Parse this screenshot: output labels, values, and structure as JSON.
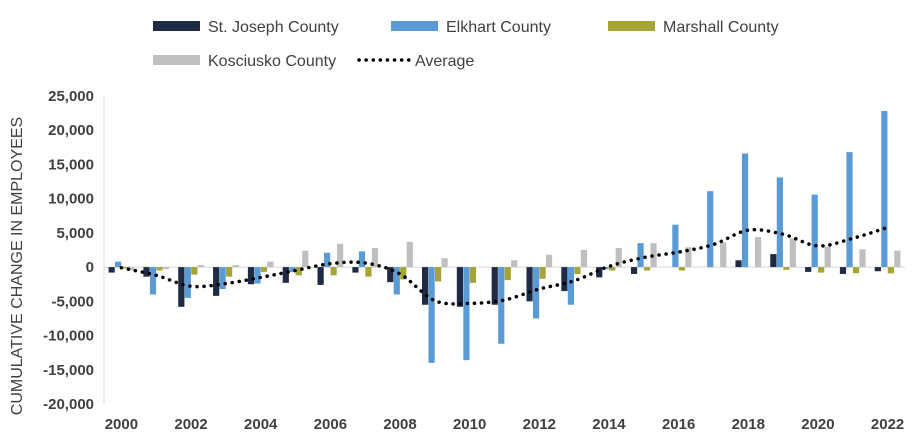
{
  "chart_data": {
    "type": "bar",
    "title": "",
    "xlabel": "",
    "ylabel": "CUMULATIVE CHANGE IN EMPLOYEES",
    "ylim": [
      -20000,
      25000
    ],
    "yticks": [
      25000,
      20000,
      15000,
      10000,
      5000,
      0,
      -5000,
      -10000,
      -15000,
      -20000
    ],
    "ytick_labels": [
      "25,000",
      "20,000",
      "15,000",
      "10,000",
      "5,000",
      "0",
      "-5,000",
      "-10,000",
      "-15,000",
      "-20,000"
    ],
    "grid": false,
    "legend_position": "top",
    "categories": [
      "2000",
      "2001",
      "2002",
      "2003",
      "2004",
      "2005",
      "2006",
      "2007",
      "2008",
      "2009",
      "2010",
      "2011",
      "2012",
      "2013",
      "2014",
      "2015",
      "2016",
      "2017",
      "2018",
      "2019",
      "2020",
      "2021",
      "2022"
    ],
    "xtick_labels": [
      "2000",
      "2002",
      "2004",
      "2006",
      "2008",
      "2010",
      "2012",
      "2014",
      "2016",
      "2018",
      "2020",
      "2022"
    ],
    "series": [
      {
        "name": "St. Joseph County",
        "color": "#1f2a44",
        "type": "bar",
        "values": [
          -800,
          -1400,
          -5800,
          -4200,
          -2500,
          -2300,
          -2600,
          -800,
          -2200,
          -5500,
          -5800,
          -5500,
          -5000,
          -3500,
          -1500,
          -1000,
          0,
          0,
          1000,
          1900,
          -700,
          -1000,
          -600
        ]
      },
      {
        "name": "Elkhart County",
        "color": "#5b9bd5",
        "type": "bar",
        "values": [
          800,
          -4000,
          -4500,
          -3200,
          -2400,
          -700,
          2100,
          2300,
          -4000,
          -14000,
          -13600,
          -11200,
          -7500,
          -5500,
          -300,
          3500,
          6200,
          11100,
          16600,
          13100,
          10600,
          16800,
          22800
        ]
      },
      {
        "name": "Marshall County",
        "color": "#a5a536",
        "type": "bar",
        "values": [
          -200,
          -500,
          -1100,
          -1400,
          -700,
          -1200,
          -1200,
          -1400,
          -1800,
          -2100,
          -2300,
          -1900,
          -1700,
          -1000,
          -500,
          -500,
          -500,
          0,
          0,
          -400,
          -800,
          -900,
          -900
        ]
      },
      {
        "name": "Kosciusko County",
        "color": "#bfbfbf",
        "type": "bar",
        "values": [
          -500,
          -300,
          300,
          300,
          800,
          2400,
          3400,
          2800,
          3700,
          1300,
          0,
          1000,
          1800,
          2500,
          2800,
          3500,
          2900,
          3600,
          4400,
          4200,
          3000,
          2600,
          2400
        ]
      },
      {
        "name": "Average",
        "color": "#000000",
        "type": "line",
        "style": "dotted",
        "values": [
          -100,
          -1200,
          -2800,
          -2400,
          -1500,
          -500,
          500,
          600,
          -1000,
          -4900,
          -5300,
          -4800,
          -3200,
          -2000,
          100,
          1400,
          2200,
          3300,
          5400,
          4800,
          3100,
          4200,
          5800
        ]
      }
    ]
  }
}
